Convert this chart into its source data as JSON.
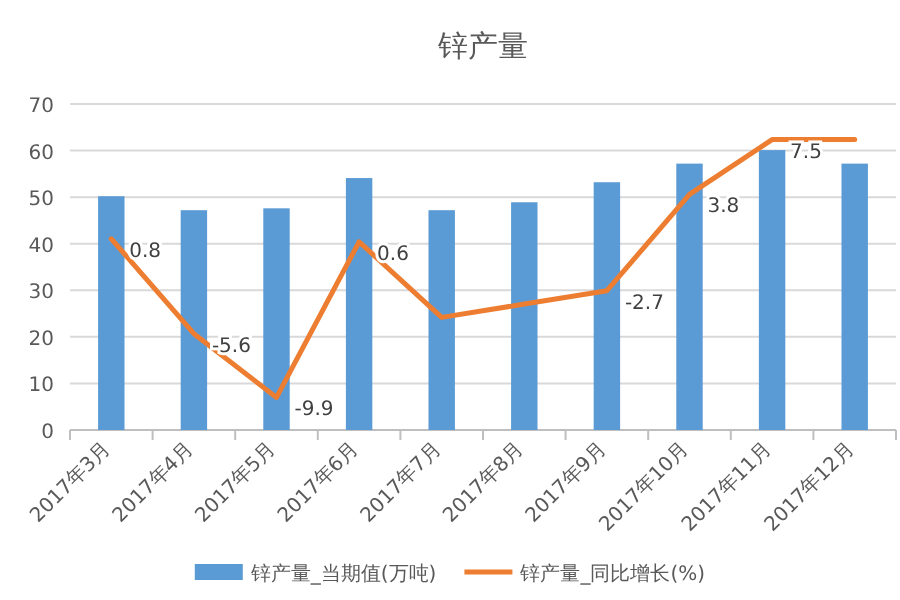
{
  "chart_data": {
    "type": "bar",
    "title": "锌产量",
    "categories": [
      "2017年3月",
      "2017年4月",
      "2017年5月",
      "2017年6月",
      "2017年7月",
      "2017年8月",
      "2017年9月",
      "2017年10月",
      "2017年11月",
      "2017年12月"
    ],
    "series": [
      {
        "name": "锌产量_当期值(万吨)",
        "color": "#5b9bd5",
        "values": [
          50.2,
          47.2,
          47.6,
          54.1,
          47.2,
          48.9,
          53.2,
          57.2,
          60.1,
          57.2
        ]
      },
      {
        "name": "锌产量_同比增长(%)",
        "type": "line",
        "axis": "y2",
        "color": "#ed7d31",
        "values": [
          0.8,
          -5.6,
          -9.9,
          0.6,
          -4.5,
          -3.6,
          -2.7,
          3.8,
          7.5,
          7.5
        ],
        "value_labels": [
          "0.8",
          "-5.6",
          "-9.9",
          "0.6",
          null,
          null,
          "-2.7",
          "3.8",
          "7.5",
          null
        ]
      }
    ],
    "ylim": [
      0,
      70
    ],
    "yticks": [
      0,
      10,
      20,
      30,
      40,
      50,
      60,
      70
    ],
    "y2lim": [
      -12.1,
      9.9
    ],
    "grid": "y",
    "legend": "bottom"
  }
}
